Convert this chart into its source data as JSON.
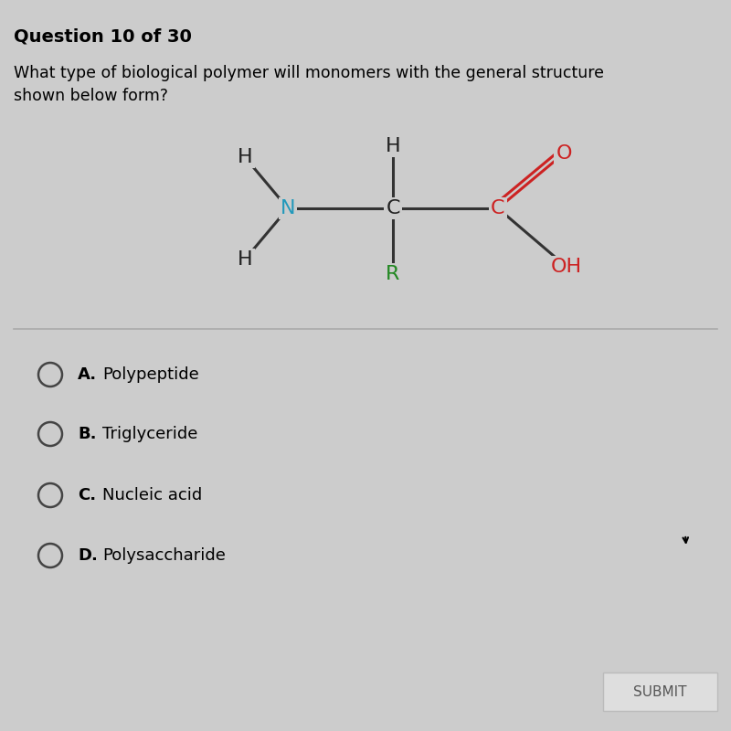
{
  "title": "Question 10 of 30",
  "question_line1": "What type of biological polymer will monomers with the general structure",
  "question_line2": "shown below form?",
  "bg_color": "#cccccc",
  "options": [
    {
      "label": "A.",
      "text": "Polypeptide"
    },
    {
      "label": "B.",
      "text": "Triglyceride"
    },
    {
      "label": "C.",
      "text": "Nucleic acid"
    },
    {
      "label": "D.",
      "text": "Polysaccharide"
    }
  ],
  "submit_btn": "SUBMIT",
  "structure": {
    "N_color": "#2299bb",
    "Ca_color": "#222222",
    "Cc_color": "#cc2222",
    "O_color": "#cc2222",
    "H_color": "#222222",
    "R_color": "#228822",
    "OH_color": "#cc2222",
    "bond_color": "#333333"
  }
}
